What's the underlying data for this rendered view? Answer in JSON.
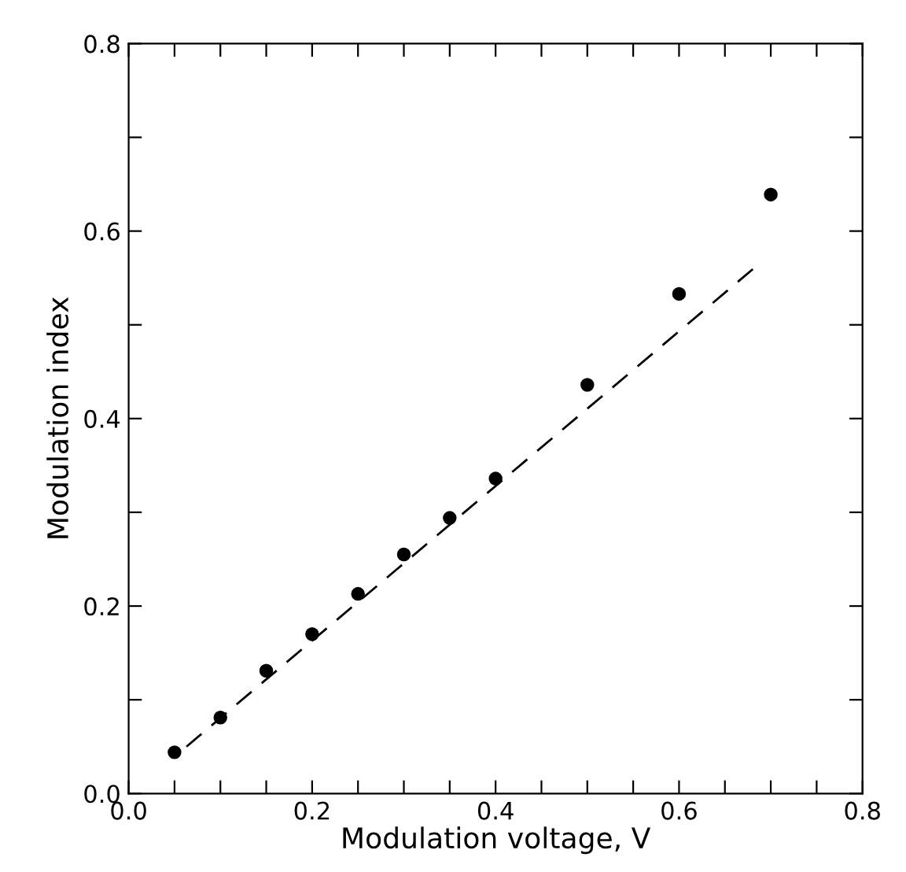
{
  "chart_data": {
    "type": "scatter",
    "xlabel": "Modulation voltage, V",
    "ylabel": "Modulation index",
    "series": [
      {
        "color": "#000000",
        "marker": "circle",
        "x": [
          0.05,
          0.1,
          0.15,
          0.2,
          0.25,
          0.3,
          0.35,
          0.4,
          0.5,
          0.6,
          0.7
        ],
        "values": [
          0.044,
          0.081,
          0.131,
          0.17,
          0.213,
          0.255,
          0.294,
          0.336,
          0.436,
          0.533,
          0.639
        ]
      },
      {
        "type": "line",
        "color": "#000000",
        "line_style": "dashed",
        "x": [
          0.063,
          0.686
        ],
        "values": [
          0.05,
          0.564
        ]
      }
    ],
    "xlim": [
      0,
      0.8
    ],
    "ylim": [
      0,
      0.8
    ],
    "xticks": [
      {
        "value": 0,
        "label": "0.0"
      },
      {
        "value": 0.05,
        "label": null
      },
      {
        "value": 0.1,
        "label": null
      },
      {
        "value": 0.15,
        "label": null
      },
      0.2,
      {
        "value": 0.25,
        "label": null
      },
      {
        "value": 0.3,
        "label": null
      },
      {
        "value": 0.35,
        "label": null
      },
      0.4,
      {
        "value": 0.45,
        "label": null
      },
      {
        "value": 0.5,
        "label": null
      },
      {
        "value": 0.55,
        "label": null
      },
      0.6,
      {
        "value": 0.65,
        "label": null
      },
      {
        "value": 0.7,
        "label": null
      },
      {
        "value": 0.75,
        "label": null
      },
      0.8
    ],
    "yticks": [
      {
        "value": 0,
        "label": "0.0"
      },
      {
        "value": 0.1,
        "label": null
      },
      0.2,
      {
        "value": 0.3,
        "label": null
      },
      0.4,
      {
        "value": 0.5,
        "label": null
      },
      0.6,
      {
        "value": 0.7,
        "label": null
      },
      0.8
    ],
    "grid": false,
    "legend": false
  }
}
